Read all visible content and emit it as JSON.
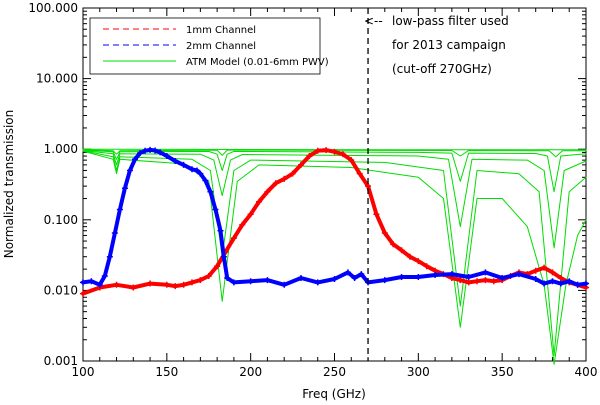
{
  "chart_data": {
    "type": "line",
    "x_scale": "linear",
    "y_scale": "log",
    "xlim": [
      100,
      400
    ],
    "ylim": [
      0.001,
      100
    ],
    "xlabel": "Freq (GHz)",
    "ylabel": "Normalized transmission",
    "x_ticks": [
      "100",
      "150",
      "200",
      "250",
      "300",
      "350",
      "400"
    ],
    "y_ticks": [
      "0.001",
      "0.010",
      "0.100",
      "1.000",
      "10.000",
      "100.000"
    ],
    "legend": {
      "position": "top-left",
      "entries": [
        {
          "label": "1mm Channel",
          "color": "#ff0000",
          "style": "dashed"
        },
        {
          "label": "2mm Channel",
          "color": "#0000ff",
          "style": "dashed"
        },
        {
          "label": "ATM Model (0.01-6mm PWV)",
          "color": "#00dd00",
          "style": "solid"
        }
      ]
    },
    "annotation": {
      "x": 270,
      "lines": [
        "low-pass filter used",
        "for 2013 campaign",
        "(cut-off 270GHz)"
      ]
    },
    "series": [
      {
        "name": "1mm Channel",
        "color": "#ff0000",
        "points": [
          [
            100,
            0.009
          ],
          [
            110,
            0.011
          ],
          [
            120,
            0.012
          ],
          [
            130,
            0.011
          ],
          [
            140,
            0.0125
          ],
          [
            150,
            0.012
          ],
          [
            155,
            0.0115
          ],
          [
            160,
            0.012
          ],
          [
            165,
            0.013
          ],
          [
            170,
            0.014
          ],
          [
            175,
            0.016
          ],
          [
            180,
            0.022
          ],
          [
            185,
            0.035
          ],
          [
            190,
            0.055
          ],
          [
            195,
            0.085
          ],
          [
            200,
            0.12
          ],
          [
            205,
            0.18
          ],
          [
            210,
            0.25
          ],
          [
            215,
            0.33
          ],
          [
            220,
            0.38
          ],
          [
            225,
            0.45
          ],
          [
            230,
            0.6
          ],
          [
            235,
            0.8
          ],
          [
            240,
            0.95
          ],
          [
            245,
            0.97
          ],
          [
            250,
            0.92
          ],
          [
            255,
            0.85
          ],
          [
            260,
            0.7
          ],
          [
            265,
            0.45
          ],
          [
            270,
            0.3
          ],
          [
            275,
            0.12
          ],
          [
            280,
            0.065
          ],
          [
            285,
            0.045
          ],
          [
            290,
            0.037
          ],
          [
            295,
            0.03
          ],
          [
            300,
            0.026
          ],
          [
            305,
            0.022
          ],
          [
            310,
            0.019
          ],
          [
            315,
            0.017
          ],
          [
            320,
            0.015
          ],
          [
            325,
            0.014
          ],
          [
            330,
            0.013
          ],
          [
            335,
            0.0135
          ],
          [
            340,
            0.014
          ],
          [
            345,
            0.0135
          ],
          [
            350,
            0.014
          ],
          [
            355,
            0.016
          ],
          [
            360,
            0.018
          ],
          [
            365,
            0.017
          ],
          [
            370,
            0.019
          ],
          [
            375,
            0.021
          ],
          [
            380,
            0.018
          ],
          [
            385,
            0.015
          ],
          [
            390,
            0.013
          ],
          [
            395,
            0.012
          ],
          [
            400,
            0.011
          ]
        ]
      },
      {
        "name": "2mm Channel",
        "color": "#0000ff",
        "points": [
          [
            100,
            0.013
          ],
          [
            105,
            0.0135
          ],
          [
            110,
            0.012
          ],
          [
            113,
            0.016
          ],
          [
            116,
            0.03
          ],
          [
            119,
            0.065
          ],
          [
            122,
            0.14
          ],
          [
            125,
            0.28
          ],
          [
            128,
            0.5
          ],
          [
            131,
            0.72
          ],
          [
            134,
            0.88
          ],
          [
            137,
            0.95
          ],
          [
            140,
            0.98
          ],
          [
            143,
            0.96
          ],
          [
            146,
            0.9
          ],
          [
            150,
            0.8
          ],
          [
            155,
            0.68
          ],
          [
            160,
            0.6
          ],
          [
            165,
            0.52
          ],
          [
            168,
            0.5
          ],
          [
            170,
            0.45
          ],
          [
            173,
            0.36
          ],
          [
            176,
            0.25
          ],
          [
            179,
            0.14
          ],
          [
            182,
            0.07
          ],
          [
            184,
            0.03
          ],
          [
            186,
            0.015
          ],
          [
            190,
            0.013
          ],
          [
            200,
            0.0135
          ],
          [
            210,
            0.014
          ],
          [
            220,
            0.012
          ],
          [
            230,
            0.015
          ],
          [
            240,
            0.013
          ],
          [
            250,
            0.0145
          ],
          [
            258,
            0.018
          ],
          [
            262,
            0.015
          ],
          [
            266,
            0.017
          ],
          [
            270,
            0.013
          ],
          [
            280,
            0.014
          ],
          [
            290,
            0.0155
          ],
          [
            300,
            0.0155
          ],
          [
            310,
            0.0165
          ],
          [
            320,
            0.017
          ],
          [
            330,
            0.0155
          ],
          [
            340,
            0.018
          ],
          [
            350,
            0.015
          ],
          [
            360,
            0.017
          ],
          [
            370,
            0.0145
          ],
          [
            375,
            0.0125
          ],
          [
            380,
            0.0135
          ],
          [
            385,
            0.0125
          ],
          [
            390,
            0.0135
          ],
          [
            395,
            0.012
          ],
          [
            400,
            0.0125
          ]
        ]
      },
      {
        "name": "ATM Model 0.01mm PWV",
        "color": "#00dd00",
        "points": [
          [
            100,
            1.0
          ],
          [
            200,
            0.99
          ],
          [
            300,
            0.98
          ],
          [
            400,
            0.98
          ]
        ]
      },
      {
        "name": "ATM Model 0.5mm PWV",
        "color": "#00dd00",
        "points": [
          [
            100,
            0.98
          ],
          [
            118,
            0.95
          ],
          [
            120,
            0.85
          ],
          [
            122,
            0.95
          ],
          [
            180,
            0.97
          ],
          [
            183,
            0.82
          ],
          [
            186,
            0.97
          ],
          [
            320,
            0.96
          ],
          [
            325,
            0.8
          ],
          [
            330,
            0.96
          ],
          [
            378,
            0.95
          ],
          [
            382,
            0.78
          ],
          [
            386,
            0.95
          ],
          [
            400,
            0.95
          ]
        ]
      },
      {
        "name": "ATM Model 1mm PWV",
        "color": "#00dd00",
        "points": [
          [
            100,
            0.97
          ],
          [
            118,
            0.92
          ],
          [
            120,
            0.72
          ],
          [
            122,
            0.92
          ],
          [
            175,
            0.93
          ],
          [
            180,
            0.85
          ],
          [
            183,
            0.5
          ],
          [
            186,
            0.85
          ],
          [
            190,
            0.93
          ],
          [
            300,
            0.9
          ],
          [
            320,
            0.88
          ],
          [
            325,
            0.35
          ],
          [
            330,
            0.88
          ],
          [
            370,
            0.87
          ],
          [
            377,
            0.8
          ],
          [
            381,
            0.25
          ],
          [
            385,
            0.8
          ],
          [
            400,
            0.86
          ]
        ]
      },
      {
        "name": "ATM Model 2mm PWV",
        "color": "#00dd00",
        "points": [
          [
            100,
            0.96
          ],
          [
            118,
            0.86
          ],
          [
            120,
            0.6
          ],
          [
            122,
            0.86
          ],
          [
            170,
            0.85
          ],
          [
            178,
            0.7
          ],
          [
            183,
            0.22
          ],
          [
            188,
            0.7
          ],
          [
            195,
            0.84
          ],
          [
            300,
            0.8
          ],
          [
            318,
            0.72
          ],
          [
            325,
            0.08
          ],
          [
            332,
            0.72
          ],
          [
            365,
            0.7
          ],
          [
            375,
            0.5
          ],
          [
            381,
            0.04
          ],
          [
            387,
            0.5
          ],
          [
            400,
            0.68
          ]
        ]
      },
      {
        "name": "ATM Model 4mm PWV",
        "color": "#00dd00",
        "points": [
          [
            100,
            0.95
          ],
          [
            118,
            0.78
          ],
          [
            120,
            0.5
          ],
          [
            122,
            0.78
          ],
          [
            165,
            0.72
          ],
          [
            176,
            0.5
          ],
          [
            183,
            0.03
          ],
          [
            190,
            0.5
          ],
          [
            200,
            0.7
          ],
          [
            280,
            0.65
          ],
          [
            315,
            0.5
          ],
          [
            325,
            0.006
          ],
          [
            335,
            0.5
          ],
          [
            360,
            0.45
          ],
          [
            372,
            0.25
          ],
          [
            381,
            0.0012
          ],
          [
            390,
            0.25
          ],
          [
            400,
            0.4
          ]
        ]
      },
      {
        "name": "ATM Model 6mm PWV",
        "color": "#00dd00",
        "points": [
          [
            100,
            0.94
          ],
          [
            118,
            0.72
          ],
          [
            120,
            0.45
          ],
          [
            122,
            0.72
          ],
          [
            160,
            0.62
          ],
          [
            175,
            0.35
          ],
          [
            183,
            0.007
          ],
          [
            192,
            0.35
          ],
          [
            205,
            0.6
          ],
          [
            260,
            0.55
          ],
          [
            300,
            0.4
          ],
          [
            315,
            0.2
          ],
          [
            325,
            0.003
          ],
          [
            335,
            0.2
          ],
          [
            350,
            0.2
          ],
          [
            365,
            0.08
          ],
          [
            375,
            0.012
          ],
          [
            381,
            0.0009
          ],
          [
            388,
            0.012
          ],
          [
            395,
            0.06
          ],
          [
            400,
            0.1
          ]
        ]
      }
    ]
  }
}
